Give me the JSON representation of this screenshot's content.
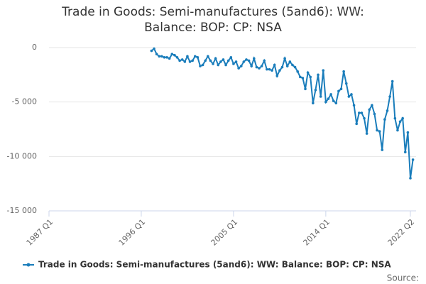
{
  "chart_data": {
    "type": "line",
    "title": "Trade in Goods: Semi-manufactures (5and6): WW: Balance: BOP: CP: NSA",
    "source_label": "Source:",
    "x": [
      "1997 Q1",
      "1997 Q2",
      "1997 Q3",
      "1997 Q4",
      "1998 Q1",
      "1998 Q2",
      "1998 Q3",
      "1998 Q4",
      "1999 Q1",
      "1999 Q2",
      "1999 Q3",
      "1999 Q4",
      "2000 Q1",
      "2000 Q2",
      "2000 Q3",
      "2000 Q4",
      "2001 Q1",
      "2001 Q2",
      "2001 Q3",
      "2001 Q4",
      "2002 Q1",
      "2002 Q2",
      "2002 Q3",
      "2002 Q4",
      "2003 Q1",
      "2003 Q2",
      "2003 Q3",
      "2003 Q4",
      "2004 Q1",
      "2004 Q2",
      "2004 Q3",
      "2004 Q4",
      "2005 Q1",
      "2005 Q2",
      "2005 Q3",
      "2005 Q4",
      "2006 Q1",
      "2006 Q2",
      "2006 Q3",
      "2006 Q4",
      "2007 Q1",
      "2007 Q2",
      "2007 Q3",
      "2007 Q4",
      "2008 Q1",
      "2008 Q2",
      "2008 Q3",
      "2008 Q4",
      "2009 Q1",
      "2009 Q2",
      "2009 Q3",
      "2009 Q4",
      "2010 Q1",
      "2010 Q2",
      "2010 Q3",
      "2010 Q4",
      "2011 Q1",
      "2011 Q2",
      "2011 Q3",
      "2011 Q4",
      "2012 Q1",
      "2012 Q2",
      "2012 Q3",
      "2012 Q4",
      "2013 Q1",
      "2013 Q2",
      "2013 Q3",
      "2013 Q4",
      "2014 Q1",
      "2014 Q2",
      "2014 Q3",
      "2014 Q4",
      "2015 Q1",
      "2015 Q2",
      "2015 Q3",
      "2015 Q4",
      "2016 Q1",
      "2016 Q2",
      "2016 Q3",
      "2016 Q4",
      "2017 Q1",
      "2017 Q2",
      "2017 Q3",
      "2017 Q4",
      "2018 Q1",
      "2018 Q2",
      "2018 Q3",
      "2018 Q4",
      "2019 Q1",
      "2019 Q2",
      "2019 Q3",
      "2019 Q4",
      "2020 Q1",
      "2020 Q2",
      "2020 Q3",
      "2020 Q4",
      "2021 Q1",
      "2021 Q2",
      "2021 Q3",
      "2021 Q4",
      "2022 Q1",
      "2022 Q2",
      "2022 Q3"
    ],
    "series": [
      {
        "name": "Trade in Goods: Semi-manufactures (5and6): WW: Balance: BOP: CP: NSA",
        "color": "#1a7dbb",
        "values": [
          -300,
          -100,
          -600,
          -800,
          -800,
          -900,
          -900,
          -1000,
          -600,
          -700,
          -900,
          -1200,
          -1100,
          -1300,
          -800,
          -1300,
          -1200,
          -800,
          -900,
          -1700,
          -1600,
          -1200,
          -800,
          -1200,
          -1500,
          -1000,
          -1600,
          -1300,
          -1100,
          -1600,
          -1200,
          -900,
          -1500,
          -1300,
          -1900,
          -1700,
          -1300,
          -1100,
          -1200,
          -1700,
          -1000,
          -1800,
          -1900,
          -1700,
          -1200,
          -2000,
          -2000,
          -2100,
          -1600,
          -2600,
          -2100,
          -1800,
          -1000,
          -1700,
          -1300,
          -1600,
          -1800,
          -2200,
          -2700,
          -2800,
          -3800,
          -2300,
          -2700,
          -5100,
          -3900,
          -2500,
          -4500,
          -2100,
          -5000,
          -4700,
          -4300,
          -4900,
          -5100,
          -4000,
          -3800,
          -2200,
          -3300,
          -4500,
          -4300,
          -5300,
          -7000,
          -6000,
          -6000,
          -6500,
          -7900,
          -5700,
          -5300,
          -6100,
          -7600,
          -7700,
          -9400,
          -6600,
          -5800,
          -4500,
          -3100,
          -6500,
          -7600,
          -6800,
          -6500,
          -9600,
          -7800,
          -12000,
          -10300
        ]
      }
    ],
    "xlim": [
      "1987 Q1",
      "2022 Q2"
    ],
    "xticks": [
      "1987 Q1",
      "1996 Q1",
      "2005 Q1",
      "2014 Q1",
      "2022 Q2"
    ],
    "ylim": [
      -15000,
      0
    ],
    "yticks": [
      {
        "value": 0,
        "label": "0"
      },
      {
        "value": -5000,
        "label": "-5 000"
      },
      {
        "value": -10000,
        "label": "-10 000"
      },
      {
        "value": -15000,
        "label": "-15 000"
      }
    ],
    "grid": true
  }
}
